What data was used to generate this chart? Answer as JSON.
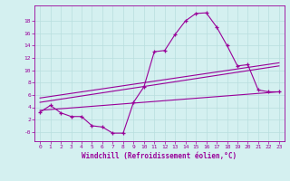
{
  "xlabel": "Windchill (Refroidissement éolien,°C)",
  "background_color": "#d4f0f0",
  "grid_color": "#b8dede",
  "line_color": "#990099",
  "x_ticks": [
    0,
    1,
    2,
    3,
    4,
    5,
    6,
    7,
    8,
    9,
    10,
    11,
    12,
    13,
    14,
    15,
    16,
    17,
    18,
    19,
    20,
    21,
    22,
    23
  ],
  "y_ticks": [
    0,
    2,
    4,
    6,
    8,
    10,
    12,
    14,
    16,
    18
  ],
  "y_tick_labels": [
    "-0",
    "2",
    "4",
    "6",
    "8",
    "10",
    "12",
    "14",
    "16",
    "18"
  ],
  "ylim": [
    -1.5,
    20.5
  ],
  "xlim": [
    -0.5,
    23.5
  ],
  "curve1_x": [
    0,
    1,
    2,
    3,
    4,
    5,
    6,
    7,
    8,
    9,
    10,
    11,
    12,
    13,
    14,
    15,
    16,
    17,
    18,
    19,
    20,
    21,
    22,
    23
  ],
  "curve1_y": [
    3.2,
    4.3,
    3.1,
    2.5,
    2.5,
    1.0,
    0.8,
    -0.2,
    -0.2,
    4.8,
    7.3,
    13.0,
    13.2,
    15.8,
    18.0,
    19.2,
    19.3,
    17.0,
    14.0,
    10.7,
    10.9,
    6.8,
    6.5,
    6.5
  ],
  "line1_x": [
    0,
    23
  ],
  "line1_y": [
    3.5,
    6.5
  ],
  "line2_x": [
    0,
    23
  ],
  "line2_y": [
    4.8,
    10.7
  ],
  "line3_x": [
    0,
    23
  ],
  "line3_y": [
    5.5,
    11.2
  ]
}
